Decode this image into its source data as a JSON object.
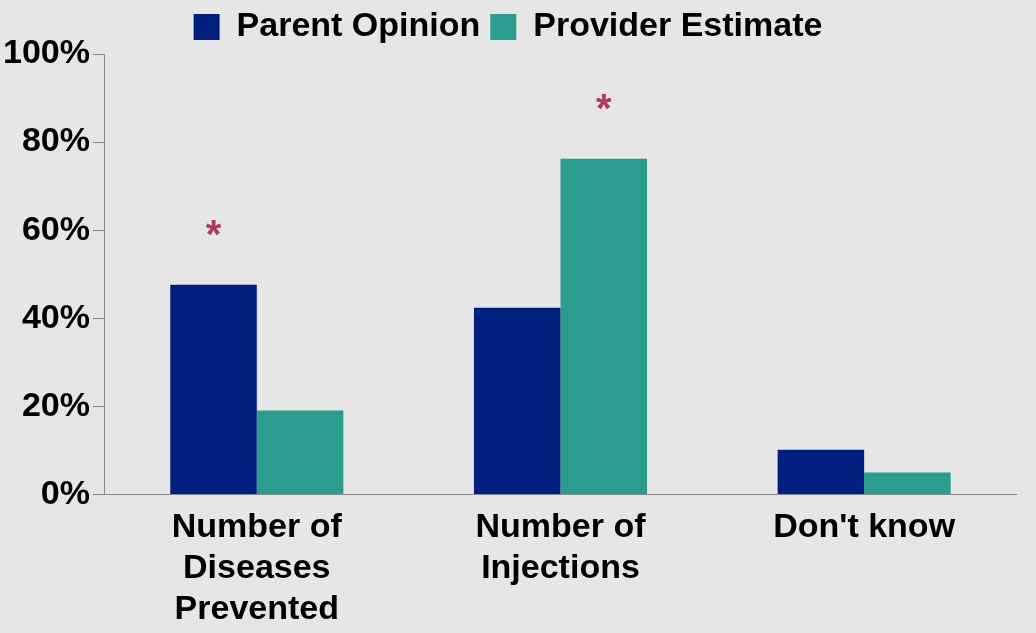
{
  "chart_data": {
    "type": "bar",
    "categories": [
      "Number of Diseases Prevented",
      "Number of Injections",
      "Don't know"
    ],
    "series": [
      {
        "name": "Parent Opinion",
        "color": "#00207f",
        "values": [
          47.6,
          42.4,
          10.2
        ]
      },
      {
        "name": "Provider Estimate",
        "color": "#2a9d8f",
        "values": [
          19.1,
          76.2,
          5.0
        ]
      }
    ],
    "ylim": [
      0,
      100
    ],
    "yticks": [
      {
        "value": 0,
        "label": "0%"
      },
      {
        "value": 20,
        "label": "20%"
      },
      {
        "value": 40,
        "label": "40%"
      },
      {
        "value": 60,
        "label": "60%"
      },
      {
        "value": 80,
        "label": "80%"
      },
      {
        "value": 100,
        "label": "100%"
      }
    ],
    "grid": false,
    "legend": "top",
    "annotations": [
      "*",
      "*"
    ]
  }
}
